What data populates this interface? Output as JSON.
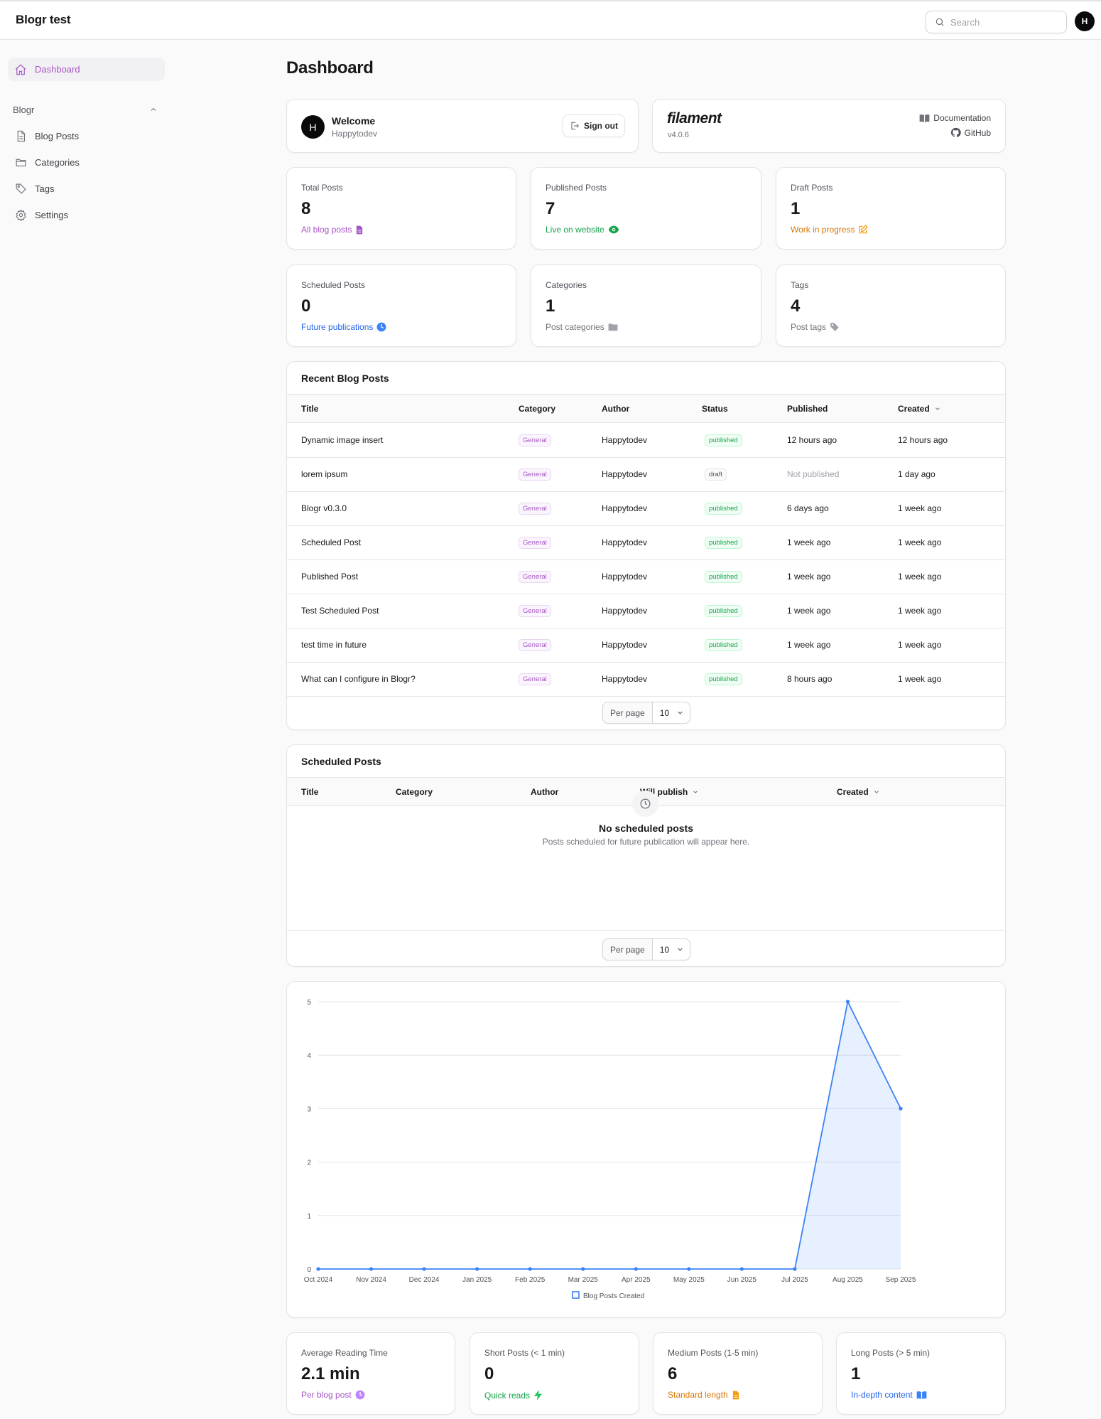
{
  "brand": "Blogr test",
  "search": {
    "placeholder": "Search"
  },
  "user": {
    "initial": "H",
    "name": "Happytodev"
  },
  "sidebar": {
    "dashboard": "Dashboard",
    "group": "Blogr",
    "items": [
      "Blog Posts",
      "Categories",
      "Tags",
      "Settings"
    ]
  },
  "page_title": "Dashboard",
  "welcome": {
    "title": "Welcome",
    "name": "Happytodev",
    "signout": "Sign out"
  },
  "filament": {
    "logo": "filament",
    "version": "v4.0.6",
    "docs": "Documentation",
    "github": "GitHub"
  },
  "colors": {
    "accent": "#a855c7",
    "success": "#16a34a",
    "warning": "#d97706",
    "info": "#2563eb",
    "gray": "#71717a",
    "chart": "#3b82f6"
  },
  "stats": [
    {
      "label": "Total Posts",
      "value": "8",
      "desc": "All blog posts",
      "color": "#a855c7",
      "icon": "document-icon"
    },
    {
      "label": "Published Posts",
      "value": "7",
      "desc": "Live on website",
      "color": "#16a34a",
      "icon": "eye-icon"
    },
    {
      "label": "Draft Posts",
      "value": "1",
      "desc": "Work in progress",
      "color": "#d97706",
      "icon": "pencil-square-icon"
    },
    {
      "label": "Scheduled Posts",
      "value": "0",
      "desc": "Future publications",
      "color": "#2563eb",
      "icon": "clock-icon"
    },
    {
      "label": "Categories",
      "value": "1",
      "desc": "Post categories",
      "color": "#71717a",
      "icon": "folder-icon"
    },
    {
      "label": "Tags",
      "value": "4",
      "desc": "Post tags",
      "color": "#71717a",
      "icon": "tag-icon"
    }
  ],
  "recent": {
    "heading": "Recent Blog Posts",
    "columns": [
      "Title",
      "Category",
      "Author",
      "Status",
      "Published",
      "Created"
    ],
    "rows": [
      {
        "title": "Dynamic image insert",
        "category": "General",
        "author": "Happytodev",
        "status": "published",
        "published": "12 hours ago",
        "created": "12 hours ago"
      },
      {
        "title": "lorem ipsum",
        "category": "General",
        "author": "Happytodev",
        "status": "draft",
        "published": "Not published",
        "created": "1 day ago"
      },
      {
        "title": "Blogr v0.3.0",
        "category": "General",
        "author": "Happytodev",
        "status": "published",
        "published": "6 days ago",
        "created": "1 week ago"
      },
      {
        "title": "Scheduled Post",
        "category": "General",
        "author": "Happytodev",
        "status": "published",
        "published": "1 week ago",
        "created": "1 week ago"
      },
      {
        "title": "Published Post",
        "category": "General",
        "author": "Happytodev",
        "status": "published",
        "published": "1 week ago",
        "created": "1 week ago"
      },
      {
        "title": "Test Scheduled Post",
        "category": "General",
        "author": "Happytodev",
        "status": "published",
        "published": "1 week ago",
        "created": "1 week ago"
      },
      {
        "title": "test time in future",
        "category": "General",
        "author": "Happytodev",
        "status": "published",
        "published": "1 week ago",
        "created": "1 week ago"
      },
      {
        "title": "What can I configure in Blogr?",
        "category": "General",
        "author": "Happytodev",
        "status": "published",
        "published": "8 hours ago",
        "created": "1 week ago"
      }
    ],
    "per_page_label": "Per page",
    "per_page_value": "10"
  },
  "scheduled": {
    "heading": "Scheduled Posts",
    "columns": [
      "Title",
      "Category",
      "Author",
      "Will publish",
      "Created"
    ],
    "empty_title": "No scheduled posts",
    "empty_sub": "Posts scheduled for future publication will appear here.",
    "per_page_label": "Per page",
    "per_page_value": "10"
  },
  "chart_data": {
    "type": "area",
    "categories": [
      "Oct 2024",
      "Nov 2024",
      "Dec 2024",
      "Jan 2025",
      "Feb 2025",
      "Mar 2025",
      "Apr 2025",
      "May 2025",
      "Jun 2025",
      "Jul 2025",
      "Aug 2025",
      "Sep 2025"
    ],
    "series": [
      {
        "name": "Blog Posts Created",
        "values": [
          0,
          0,
          0,
          0,
          0,
          0,
          0,
          0,
          0,
          0,
          5,
          3
        ]
      }
    ],
    "yticks": [
      "0",
      "1",
      "2",
      "3",
      "4",
      "5"
    ],
    "ylim": [
      0,
      5
    ],
    "grid": true,
    "legend": "bottom"
  },
  "reading": [
    {
      "label": "Average Reading Time",
      "value": "2.1 min",
      "desc": "Per blog post",
      "color": "#a855c7",
      "icon": "clock-icon"
    },
    {
      "label": "Short Posts (< 1 min)",
      "value": "0",
      "desc": "Quick reads",
      "color": "#16a34a",
      "icon": "bolt-icon"
    },
    {
      "label": "Medium Posts (1-5 min)",
      "value": "6",
      "desc": "Standard length",
      "color": "#d97706",
      "icon": "document-icon"
    },
    {
      "label": "Long Posts (> 5 min)",
      "value": "1",
      "desc": "In-depth content",
      "color": "#2563eb",
      "icon": "book-icon"
    }
  ]
}
